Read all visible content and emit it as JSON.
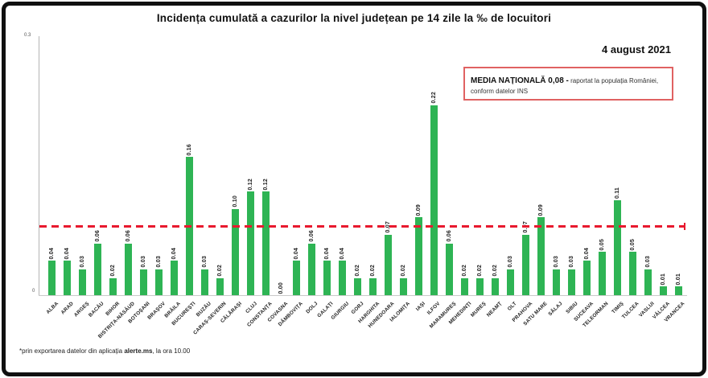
{
  "title": "Incidența cumulată a cazurilor la nivel județean pe 14 zile   la ‰ de locuitori",
  "date_label": "4 august 2021",
  "national_average_box": {
    "bold_text": "MEDIA NAȚIONALĂ  0,08 -",
    "normal_text_line1": " raportat la populația României,",
    "normal_text_line2": "conform datelor INS",
    "border_color": "#e06262"
  },
  "footnote": {
    "prefix": "*prin exportarea datelor din aplicația ",
    "bold": "alerte.ms",
    "suffix": ", la ora 10.00"
  },
  "chart_data": {
    "type": "bar",
    "title": "Incidența cumulată a cazurilor la nivel județean pe 14 zile la ‰ de locuitori",
    "categories": [
      "ALBA",
      "ARAD",
      "ARGEȘ",
      "BACĂU",
      "BIHOR",
      "BISTRIȚA-NĂSĂUD",
      "BOTOȘANI",
      "BRAȘOV",
      "BRĂILA",
      "BUCUREȘTI",
      "BUZĂU",
      "CARAȘ-SEVERIN",
      "CĂLĂRAȘI",
      "CLUJ",
      "CONSTANȚA",
      "COVASNA",
      "DÂMBOVIȚA",
      "DOLJ",
      "GALAȚI",
      "GIURGIU",
      "GORJ",
      "HARGHITA",
      "HUNEDOARA",
      "IALOMIȚA",
      "IAȘI",
      "ILFOV",
      "MARAMUREȘ",
      "MEHEDINȚI",
      "MUREȘ",
      "NEAMȚ",
      "OLT",
      "PRAHOVA",
      "SATU MARE",
      "SĂLAJ",
      "SIBIU",
      "SUCEAVA",
      "TELEORMAN",
      "TIMIȘ",
      "TULCEA",
      "VASLUI",
      "VÂLCEA",
      "VRANCEA"
    ],
    "values": [
      0.04,
      0.04,
      0.03,
      0.06,
      0.02,
      0.06,
      0.03,
      0.03,
      0.04,
      0.16,
      0.03,
      0.02,
      0.1,
      0.12,
      0.12,
      0.0,
      0.04,
      0.06,
      0.04,
      0.04,
      0.02,
      0.02,
      0.07,
      0.02,
      0.09,
      0.22,
      0.06,
      0.02,
      0.02,
      0.02,
      0.03,
      0.07,
      0.09,
      0.03,
      0.03,
      0.04,
      0.05,
      0.11,
      0.05,
      0.03,
      0.01,
      0.01
    ],
    "bar_color": "#2eb454",
    "value_label_decimals": 2,
    "reference_line": {
      "value": 0.08,
      "color": "#e8192e",
      "style": "dashed",
      "meaning": "MEDIA NAȚIONALĂ 0,08"
    },
    "ylim": [
      0,
      0.3
    ],
    "y_ticks": [
      {
        "label": "0.3"
      },
      {
        "label": "0"
      }
    ],
    "xlabel": "",
    "ylabel": "",
    "grid": false,
    "legend": false
  }
}
